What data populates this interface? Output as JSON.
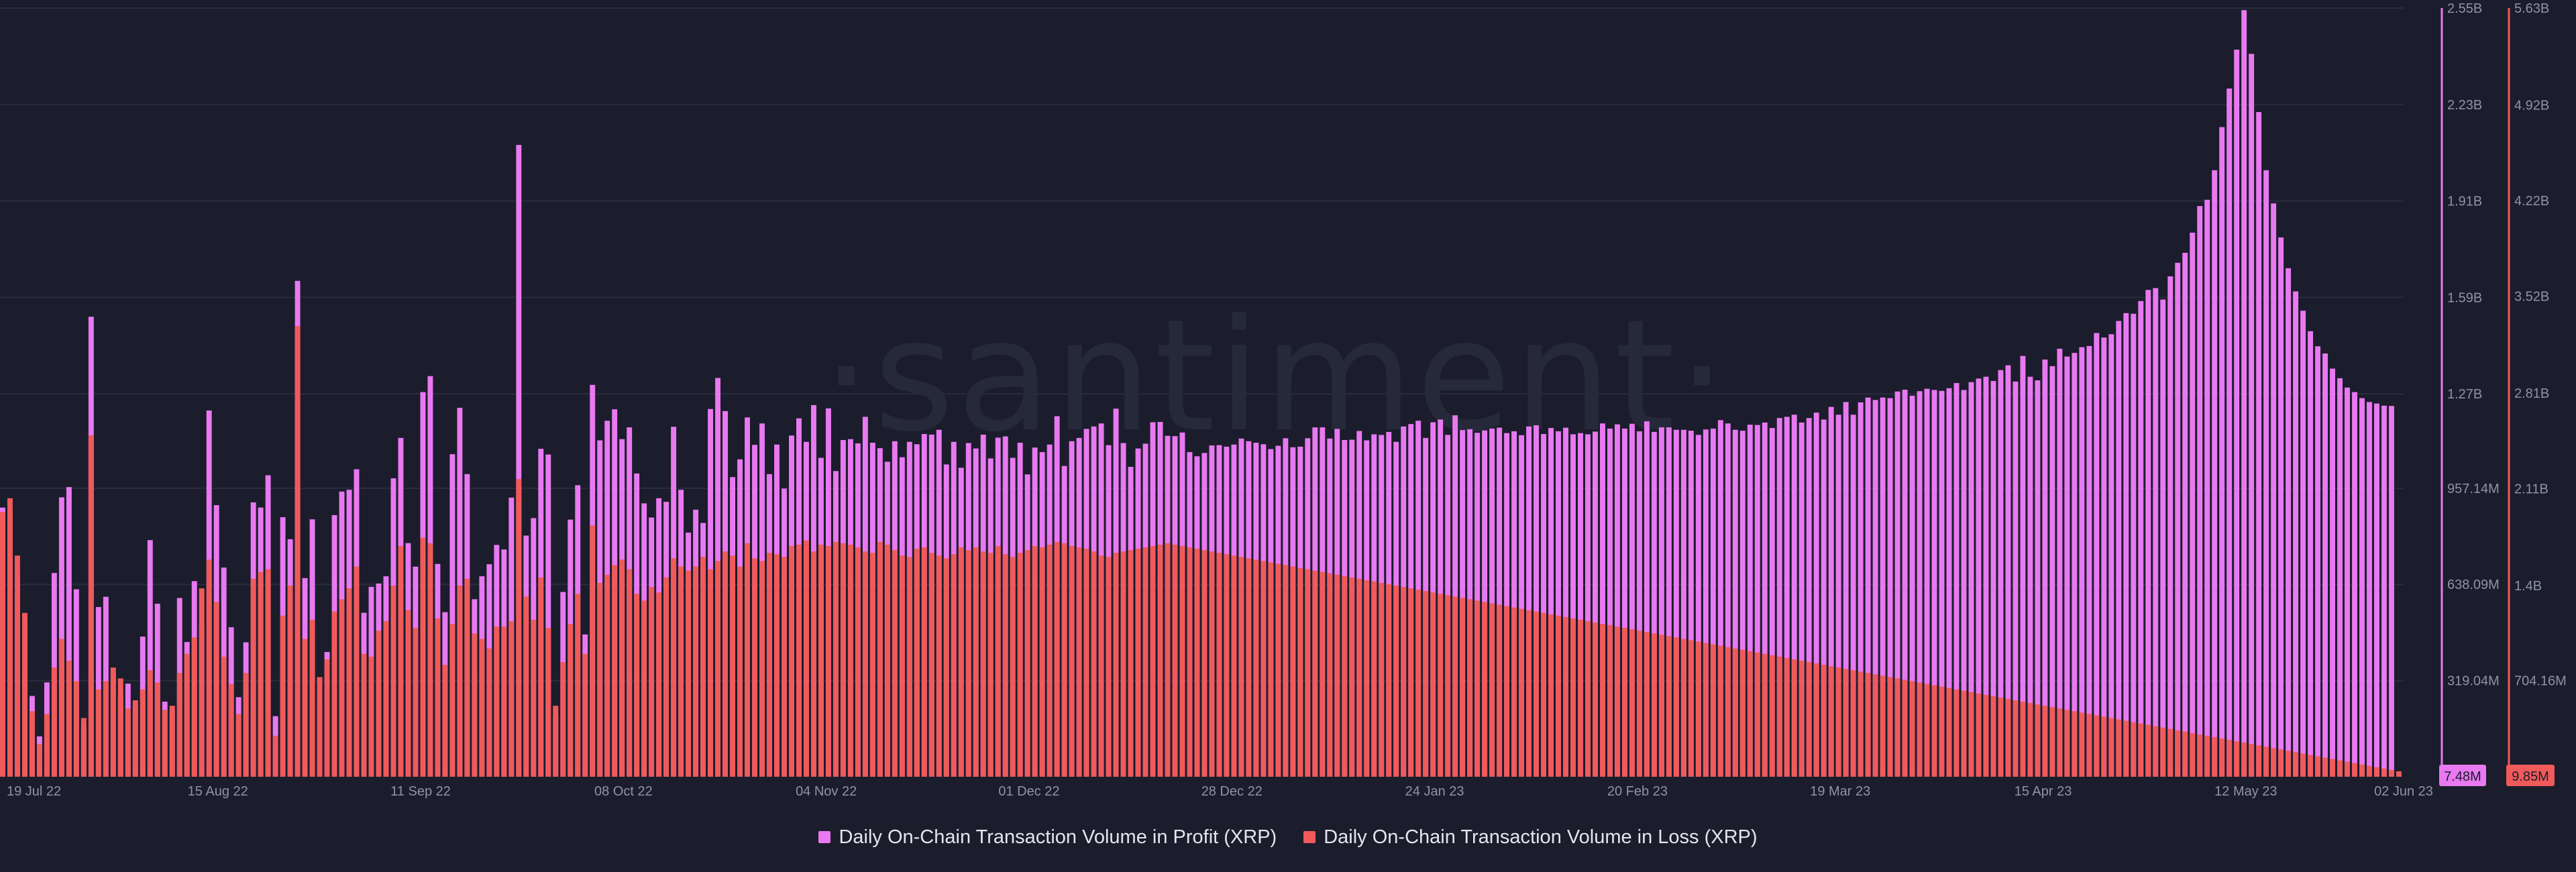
{
  "chart_data": {
    "type": "bar",
    "watermark": "·santiment·",
    "colors": {
      "background": "#1b1d2c",
      "profit": "#e879f0",
      "loss": "#f05a5a",
      "grid": "#2a2d3e",
      "tick": "#8f93a8"
    },
    "x_start": "2022-07-17",
    "x_end": "2023-06-02",
    "x_ticks": [
      {
        "date": "2022-07-19",
        "label": "19 Jul 22"
      },
      {
        "date": "2022-08-15",
        "label": "15 Aug 22"
      },
      {
        "date": "2022-09-11",
        "label": "11 Sep 22"
      },
      {
        "date": "2022-10-08",
        "label": "08 Oct 22"
      },
      {
        "date": "2022-11-04",
        "label": "04 Nov 22"
      },
      {
        "date": "2022-12-01",
        "label": "01 Dec 22"
      },
      {
        "date": "2022-12-28",
        "label": "28 Dec 22"
      },
      {
        "date": "2023-01-24",
        "label": "24 Jan 23"
      },
      {
        "date": "2023-02-20",
        "label": "20 Feb 23"
      },
      {
        "date": "2023-03-19",
        "label": "19 Mar 23"
      },
      {
        "date": "2023-04-15",
        "label": "15 Apr 23"
      },
      {
        "date": "2023-05-12",
        "label": "12 May 23"
      },
      {
        "date": "2023-06-02",
        "label": "02 Jun 23"
      }
    ],
    "y_profit_axis": {
      "label": "",
      "ylim": [
        0,
        2550
      ],
      "unit_of_values": "M XRP",
      "ticks": [
        {
          "value": 319.04,
          "label": "319.04M"
        },
        {
          "value": 638.09,
          "label": "638.09M"
        },
        {
          "value": 957.14,
          "label": "957.14M"
        },
        {
          "value": 1270,
          "label": "1.27B"
        },
        {
          "value": 1590,
          "label": "1.59B"
        },
        {
          "value": 1910,
          "label": "1.91B"
        },
        {
          "value": 2230,
          "label": "2.23B"
        },
        {
          "value": 2550,
          "label": "2.55B"
        }
      ],
      "last_value_label": "7.48M"
    },
    "y_loss_axis": {
      "label": "",
      "ylim": [
        0,
        5630
      ],
      "unit_of_values": "M XRP",
      "ticks": [
        {
          "value": 704.16,
          "label": "704.16M"
        },
        {
          "value": 1400,
          "label": "1.4B"
        },
        {
          "value": 2110,
          "label": "2.11B"
        },
        {
          "value": 2810,
          "label": "2.81B"
        },
        {
          "value": 3520,
          "label": "3.52B"
        },
        {
          "value": 4220,
          "label": "4.22B"
        },
        {
          "value": 4920,
          "label": "4.92B"
        },
        {
          "value": 5630,
          "label": "5.63B"
        }
      ],
      "last_value_label": "9.85M"
    },
    "series": [
      {
        "name": "Daily On-Chain Transaction Volume in Profit (XRP)",
        "axis": "left",
        "values": [
          893,
          862,
          669,
          521,
          268,
          134,
          313,
          676,
          927,
          961,
          622,
          167,
          1526,
          563,
          597,
          341,
          275,
          309,
          238,
          465,
          785,
          574,
          249,
          222,
          593,
          447,
          649,
          506,
          1215,
          901,
          694,
          496,
          264,
          446,
          910,
          893,
          1000,
          201,
          861,
          788,
          1645,
          659,
          854,
          250,
          414,
          868,
          946,
          952,
          1020,
          544,
          630,
          641,
          665,
          990,
          1124,
          775,
          697,
          1276,
          1329,
          706,
          546,
          1070,
          1224,
          1004,
          589,
          665,
          705,
          769,
          754,
          926,
          2096,
          800,
          858,
          1088,
          1069,
          200,
          613,
          853,
          967,
          472,
          1300,
          1116,
          1181,
          1219,
          1120,
          1159,
          1006,
          907,
          860,
          924,
          912,
          1161,
          952,
          810,
          886,
          842,
          1220,
          1323,
          1213,
          994,
          1053,
          1192,
          1101,
          1172,
          1004,
          1102,
          956,
          1132,
          1189,
          1111,
          1233,
          1058,
          1222,
          1014,
          1117,
          1120,
          1106,
          1194,
          1108,
          1090,
          1045,
          1113,
          1060,
          1111,
          1103,
          1137,
          1135,
          1151,
          1036,
          1111,
          1025,
          1107,
          1089,
          1135,
          1056,
          1125,
          1129,
          1058,
          1108,
          1003,
          1092,
          1077,
          1102,
          1196,
          1031,
          1113,
          1124,
          1154,
          1162,
          1172,
          1100,
          1221,
          1107,
          1028,
          1089,
          1105,
          1176,
          1177,
          1131,
          1130,
          1142,
          1077,
          1063,
          1074,
          1099,
          1100,
          1095,
          1102,
          1122,
          1113,
          1108,
          1103,
          1087,
          1098,
          1123,
          1093,
          1095,
          1123,
          1159,
          1159,
          1122,
          1154,
          1117,
          1118,
          1147,
          1116,
          1136,
          1134,
          1144,
          1111,
          1162,
          1170,
          1181,
          1124,
          1176,
          1185,
          1134,
          1199,
          1150,
          1153,
          1141,
          1149,
          1155,
          1158,
          1140,
          1146,
          1133,
          1162,
          1166,
          1137,
          1157,
          1146,
          1158,
          1136,
          1140,
          1136,
          1145,
          1172,
          1155,
          1169,
          1155,
          1171,
          1146,
          1179,
          1144,
          1159,
          1159,
          1151,
          1151,
          1148,
          1134,
          1152,
          1155,
          1183,
          1172,
          1151,
          1148,
          1168,
          1167,
          1175,
          1157,
          1190,
          1194,
          1201,
          1175,
          1190,
          1208,
          1185,
          1227,
          1201,
          1243,
          1201,
          1242,
          1258,
          1250,
          1258,
          1256,
          1278,
          1284,
          1264,
          1279,
          1287,
          1283,
          1280,
          1289,
          1306,
          1283,
          1309,
          1321,
          1327,
          1313,
          1349,
          1365,
          1311,
          1396,
          1327,
          1315,
          1384,
          1362,
          1420,
          1394,
          1406,
          1425,
          1429,
          1472,
          1457,
          1468,
          1512,
          1538,
          1536,
          1578,
          1615,
          1621,
          1583,
          1660,
          1705,
          1738,
          1805,
          1893,
          1914,
          2012,
          2155,
          2283,
          2412,
          2543,
          2398,
          2205,
          2012,
          1902,
          1789,
          1687,
          1610,
          1546,
          1478,
          1428,
          1404,
          1354,
          1322,
          1291,
          1276,
          1256,
          1243,
          1238,
          1231,
          1230,
          7.48
        ]
      },
      {
        "name": "Daily On-Chain Transaction Volume in Loss (XRP)",
        "axis": "right",
        "values": [
          1940,
          2040,
          1620,
          1200,
          480,
          240,
          460,
          800,
          1010,
          850,
          700,
          430,
          2500,
          640,
          700,
          800,
          720,
          500,
          560,
          640,
          780,
          690,
          490,
          520,
          760,
          900,
          1020,
          1380,
          1590,
          1280,
          880,
          680,
          460,
          760,
          1450,
          1500,
          1520,
          300,
          1180,
          1400,
          3300,
          1010,
          1150,
          730,
          860,
          1210,
          1300,
          1380,
          1540,
          900,
          880,
          1070,
          1140,
          1400,
          1690,
          1220,
          1090,
          1750,
          1710,
          1160,
          820,
          1120,
          1400,
          1450,
          1050,
          1010,
          940,
          1100,
          1100,
          1140,
          2180,
          1320,
          1150,
          1460,
          1090,
          520,
          840,
          1120,
          1340,
          900,
          1840,
          1420,
          1480,
          1550,
          1590,
          1520,
          1340,
          1290,
          1390,
          1350,
          1460,
          1600,
          1540,
          1510,
          1540,
          1610,
          1520,
          1580,
          1650,
          1620,
          1540,
          1710,
          1600,
          1580,
          1640,
          1630,
          1610,
          1690,
          1700,
          1730,
          1650,
          1700,
          1690,
          1720,
          1710,
          1700,
          1680,
          1650,
          1640,
          1720,
          1700,
          1660,
          1620,
          1610,
          1670,
          1680,
          1640,
          1620,
          1600,
          1630,
          1680,
          1660,
          1680,
          1650,
          1640,
          1690,
          1630,
          1610,
          1640,
          1660,
          1690,
          1680,
          1700,
          1720,
          1710,
          1690,
          1680,
          1670,
          1650,
          1620,
          1610,
          1640,
          1650,
          1660,
          1670,
          1680,
          1690,
          1700,
          1710,
          1700,
          1690,
          1680,
          1670,
          1660,
          1650,
          1640,
          1630,
          1620,
          1610,
          1600,
          1590,
          1580,
          1570,
          1560,
          1550,
          1540,
          1530,
          1520,
          1510,
          1500,
          1490,
          1480,
          1470,
          1460,
          1450,
          1440,
          1430,
          1420,
          1410,
          1400,
          1390,
          1380,
          1370,
          1360,
          1350,
          1340,
          1330,
          1320,
          1310,
          1300,
          1290,
          1280,
          1270,
          1260,
          1250,
          1240,
          1230,
          1220,
          1210,
          1200,
          1190,
          1180,
          1170,
          1160,
          1150,
          1140,
          1130,
          1120,
          1110,
          1100,
          1090,
          1080,
          1070,
          1060,
          1050,
          1040,
          1030,
          1020,
          1010,
          1000,
          990,
          980,
          970,
          960,
          950,
          940,
          930,
          920,
          910,
          900,
          890,
          880,
          870,
          860,
          850,
          840,
          830,
          820,
          810,
          800,
          790,
          780,
          770,
          760,
          750,
          740,
          730,
          720,
          710,
          700,
          690,
          680,
          670,
          660,
          650,
          640,
          630,
          620,
          610,
          600,
          590,
          580,
          570,
          560,
          550,
          540,
          530,
          520,
          510,
          500,
          490,
          480,
          470,
          460,
          450,
          440,
          430,
          420,
          410,
          400,
          390,
          380,
          370,
          360,
          350,
          340,
          330,
          320,
          310,
          300,
          290,
          280,
          270,
          260,
          250,
          240,
          230,
          220,
          210,
          200,
          190,
          180,
          170,
          160,
          150,
          140,
          130,
          120,
          110,
          100,
          90,
          80,
          70,
          60,
          50,
          40,
          30,
          20,
          9.85
        ]
      }
    ]
  }
}
